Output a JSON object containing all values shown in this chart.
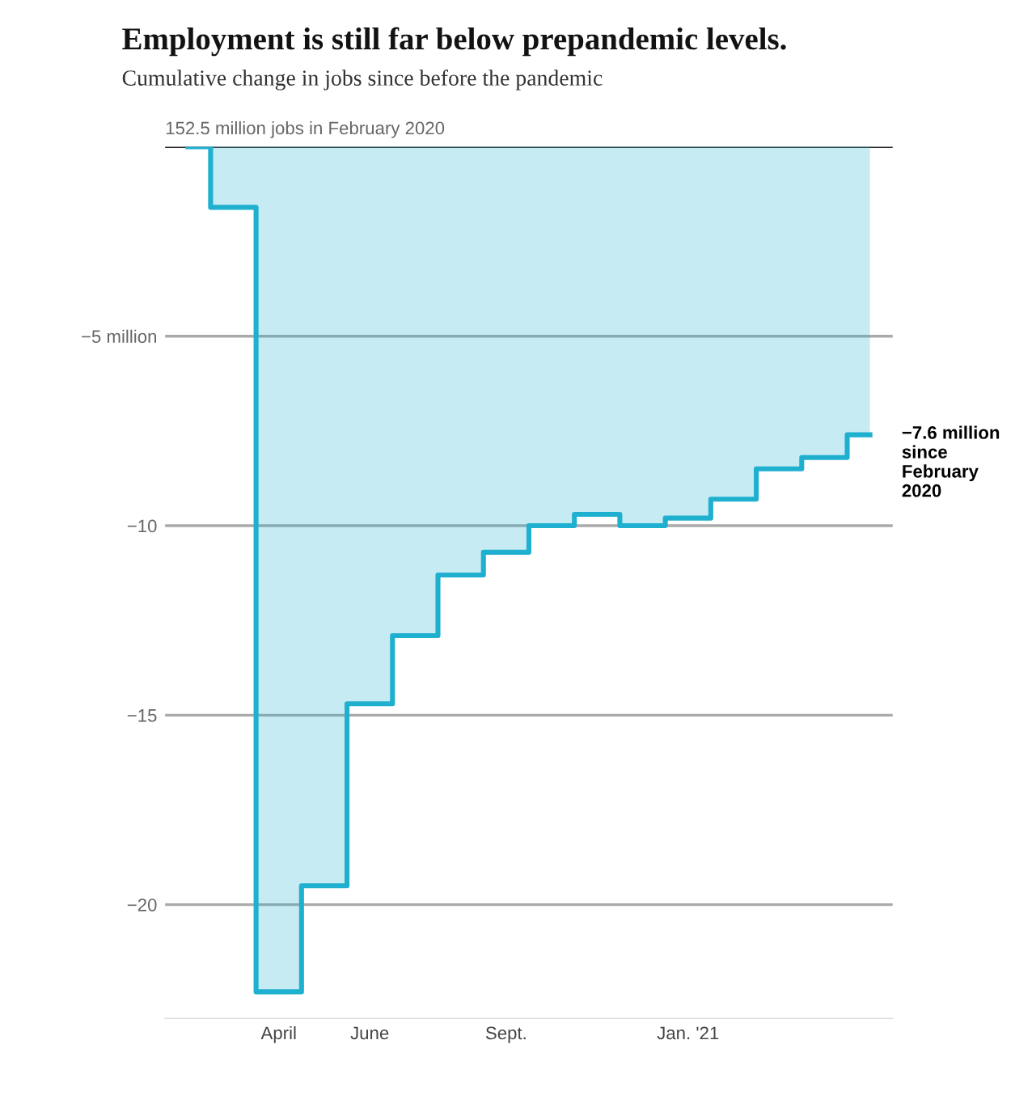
{
  "chart_data": {
    "type": "step",
    "title": "Employment is still far below prepandemic levels.",
    "subtitle": "Cumulative change in jobs since before the pandemic",
    "categories": [
      null,
      null,
      "April",
      null,
      "June",
      null,
      null,
      "Sept.",
      null,
      null,
      null,
      "Jan. '21",
      null,
      null,
      null,
      null
    ],
    "series": [
      {
        "color": "#1fb0d0",
        "values": [
          0,
          -1.6,
          -22.3,
          -19.5,
          -14.7,
          -12.9,
          -11.3,
          -10.7,
          -10.0,
          -9.7,
          -10.0,
          -9.8,
          -9.3,
          -8.5,
          -8.2,
          -7.6
        ]
      }
    ],
    "ylim": [
      -23,
      0
    ],
    "yticks": [
      {
        "value": 0,
        "label": null
      },
      {
        "value": -5,
        "label": "−5 million"
      },
      {
        "value": -10,
        "label": "−10"
      },
      {
        "value": -15,
        "label": "−15"
      },
      {
        "value": -20,
        "label": "−20"
      }
    ],
    "grid": "y",
    "annotations": [
      "152.5 million jobs in February 2020",
      "−7.6 million\nsince\nFebruary\n2020"
    ]
  }
}
